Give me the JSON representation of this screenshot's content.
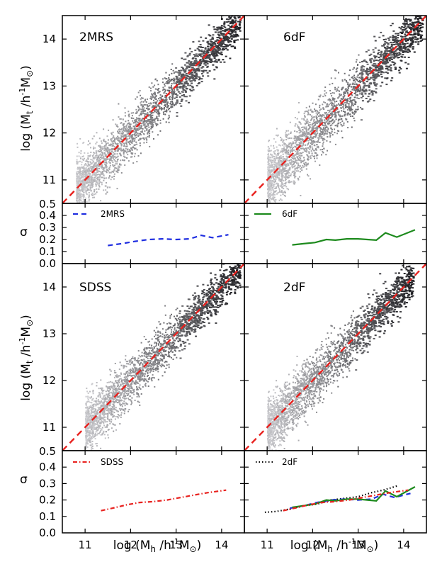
{
  "figure": {
    "ylabel_top": "log (M",
    "ylabel_top_sub": "t",
    "ylabel_top_rest": " /h",
    "ylabel_top_sup": "-1",
    "ylabel_top_end": "M",
    "ylabel_top_sun": "⊙",
    "ylabel_top_close": ")",
    "xlabel_main": "log (M",
    "xlabel_sub": "h",
    "xlabel_rest": " /h",
    "xlabel_sup": "-1",
    "xlabel_end": "M",
    "xlabel_sun": "⊙",
    "xlabel_close": ")",
    "sigma_label": "σ"
  },
  "chart_data": [
    {
      "type": "scatter",
      "id": "2MRS-scatter",
      "title": "2MRS",
      "xlabel": "log (Mh /h-1M⊙)",
      "ylabel": "log (Mt /h-1M⊙)",
      "xlim": [
        10.5,
        14.5
      ],
      "ylim": [
        10.5,
        14.5
      ],
      "yticks": [
        "11",
        "12",
        "13",
        "14"
      ],
      "ybottom_label": "0.5",
      "scatter_spread": 0.3,
      "scatter_xrange": [
        10.8,
        14.4
      ],
      "one_to_one_line": {
        "color": "#e8211e",
        "style": "dashed",
        "x": [
          10.5,
          14.5
        ],
        "y": [
          10.5,
          14.5
        ]
      }
    },
    {
      "type": "scatter",
      "id": "6dF-scatter",
      "title": "6dF",
      "xlim": [
        10.5,
        14.5
      ],
      "ylim": [
        10.5,
        14.5
      ],
      "scatter_spread": 0.33,
      "scatter_xrange": [
        11.0,
        14.4
      ],
      "one_to_one_line": {
        "color": "#e8211e",
        "style": "dashed",
        "x": [
          10.5,
          14.5
        ],
        "y": [
          10.5,
          14.5
        ]
      }
    },
    {
      "type": "line",
      "id": "2MRS-sigma",
      "ylabel": "σ",
      "xlim": [
        10.5,
        14.5
      ],
      "ylim": [
        0.0,
        0.5
      ],
      "yticks": [
        "0.4",
        "0.3",
        "0.2",
        "0.1",
        "0.0"
      ],
      "legend": "2MRS",
      "series": [
        {
          "name": "2MRS",
          "color": "#1f2ee0",
          "style": "dashed",
          "x": [
            11.5,
            11.8,
            12.1,
            12.4,
            12.7,
            13.0,
            13.3,
            13.55,
            13.8,
            14.15
          ],
          "y": [
            0.15,
            0.165,
            0.185,
            0.2,
            0.205,
            0.2,
            0.205,
            0.235,
            0.215,
            0.24
          ]
        }
      ]
    },
    {
      "type": "line",
      "id": "6dF-sigma",
      "xlim": [
        10.5,
        14.5
      ],
      "ylim": [
        0.0,
        0.5
      ],
      "legend": "6dF",
      "series": [
        {
          "name": "6dF",
          "color": "#1d8a1d",
          "style": "solid",
          "x": [
            11.55,
            11.8,
            12.05,
            12.3,
            12.5,
            12.75,
            13.0,
            13.2,
            13.4,
            13.6,
            13.85,
            14.25
          ],
          "y": [
            0.155,
            0.165,
            0.175,
            0.2,
            0.195,
            0.205,
            0.205,
            0.2,
            0.195,
            0.255,
            0.22,
            0.28
          ]
        }
      ]
    },
    {
      "type": "scatter",
      "id": "SDSS-scatter",
      "title": "SDSS",
      "xlim": [
        10.5,
        14.5
      ],
      "ylim": [
        10.5,
        14.5
      ],
      "yticks": [
        "11",
        "12",
        "13",
        "14"
      ],
      "ybottom_label": "0.5",
      "scatter_spread": 0.28,
      "scatter_xrange": [
        11.0,
        14.4
      ],
      "one_to_one_line": {
        "color": "#e8211e",
        "style": "dashed",
        "x": [
          10.5,
          14.5
        ],
        "y": [
          10.5,
          14.5
        ]
      }
    },
    {
      "type": "scatter",
      "id": "2dF-scatter",
      "title": "2dF",
      "xlim": [
        10.5,
        14.5
      ],
      "ylim": [
        10.5,
        14.5
      ],
      "scatter_spread": 0.3,
      "scatter_xrange": [
        11.0,
        14.2
      ],
      "one_to_one_line": {
        "color": "#e8211e",
        "style": "dashed",
        "x": [
          10.5,
          14.5
        ],
        "y": [
          10.5,
          14.5
        ]
      }
    },
    {
      "type": "line",
      "id": "SDSS-sigma",
      "ylabel": "σ",
      "xlim": [
        10.5,
        14.5
      ],
      "ylim": [
        0.0,
        0.5
      ],
      "yticks": [
        "0.4",
        "0.3",
        "0.2",
        "0.1",
        "0.0"
      ],
      "xticks": [
        "11",
        "12",
        "13",
        "14"
      ],
      "legend": "SDSS",
      "series": [
        {
          "name": "SDSS",
          "color": "#e8211e",
          "style": "dashdot",
          "x": [
            11.35,
            11.6,
            11.9,
            12.2,
            12.5,
            12.8,
            13.1,
            13.4,
            13.7,
            14.1
          ],
          "y": [
            0.135,
            0.15,
            0.17,
            0.185,
            0.19,
            0.2,
            0.215,
            0.23,
            0.245,
            0.26
          ]
        }
      ]
    },
    {
      "type": "line",
      "id": "2dF-sigma",
      "xlim": [
        10.5,
        14.5
      ],
      "ylim": [
        0.0,
        0.5
      ],
      "xticks": [
        "11",
        "12",
        "13",
        "14"
      ],
      "legend": "2dF",
      "series": [
        {
          "name": "2dF",
          "color": "#000000",
          "style": "dotted",
          "x": [
            10.95,
            11.2,
            11.5,
            11.8,
            12.1,
            12.4,
            12.7,
            13.0,
            13.3,
            13.55,
            13.85
          ],
          "y": [
            0.125,
            0.13,
            0.145,
            0.165,
            0.175,
            0.2,
            0.21,
            0.22,
            0.245,
            0.26,
            0.285
          ]
        },
        {
          "name": "2MRS",
          "color": "#1f2ee0",
          "style": "dashed",
          "x": [
            11.5,
            11.8,
            12.1,
            12.4,
            12.7,
            13.0,
            13.3,
            13.55,
            13.8,
            14.15
          ],
          "y": [
            0.15,
            0.165,
            0.185,
            0.2,
            0.205,
            0.2,
            0.205,
            0.235,
            0.215,
            0.24
          ]
        },
        {
          "name": "6dF",
          "color": "#1d8a1d",
          "style": "solid",
          "x": [
            11.55,
            11.8,
            12.05,
            12.3,
            12.5,
            12.75,
            13.0,
            13.2,
            13.4,
            13.6,
            13.85,
            14.25
          ],
          "y": [
            0.155,
            0.165,
            0.175,
            0.2,
            0.195,
            0.205,
            0.205,
            0.2,
            0.195,
            0.255,
            0.22,
            0.28
          ]
        },
        {
          "name": "SDSS",
          "color": "#e8211e",
          "style": "dashdot",
          "x": [
            11.35,
            11.6,
            11.9,
            12.2,
            12.5,
            12.8,
            13.1,
            13.4,
            13.7,
            14.1
          ],
          "y": [
            0.135,
            0.15,
            0.17,
            0.185,
            0.19,
            0.2,
            0.215,
            0.23,
            0.245,
            0.26
          ]
        }
      ]
    }
  ]
}
